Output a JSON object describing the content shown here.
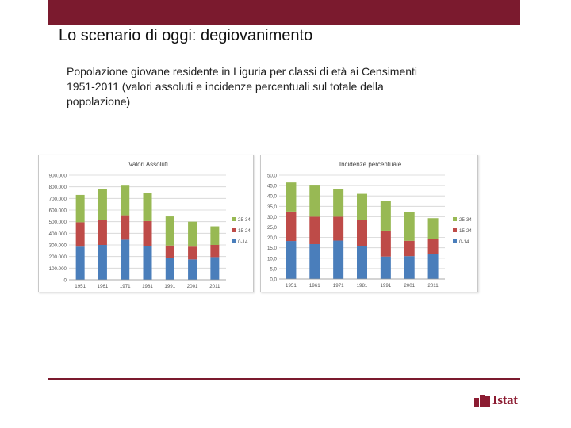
{
  "slide": {
    "title": "Lo scenario di oggi: degiovanimento",
    "subtitle": "Popolazione giovane residente in Liguria per classi di età ai Censimenti 1951-2011 (valori assoluti e incidenze percentuali sul totale della popolazione)",
    "logo_text": "Istat"
  },
  "colors": {
    "accent": "#7b1a2e",
    "series_0_14": "#4a7ebb",
    "series_15_24": "#be4b48",
    "series_25_34": "#98b954"
  },
  "chart_data": [
    {
      "type": "bar",
      "stacked": true,
      "title": "Valori Assoluti",
      "categories": [
        "1951",
        "1961",
        "1971",
        "1981",
        "1991",
        "2001",
        "2011"
      ],
      "series": [
        {
          "name": "0-14",
          "values": [
            285000,
            300000,
            345000,
            290000,
            185000,
            175000,
            195000
          ]
        },
        {
          "name": "15-24",
          "values": [
            210000,
            215000,
            210000,
            215000,
            110000,
            110000,
            105000
          ]
        },
        {
          "name": "25-34",
          "values": [
            235000,
            265000,
            255000,
            245000,
            250000,
            215000,
            160000
          ]
        }
      ],
      "ylim": [
        0,
        900000
      ],
      "yticks": [
        "0",
        "100.000",
        "200.000",
        "300.000",
        "400.000",
        "500.000",
        "600.000",
        "700.000",
        "800.000",
        "900.000"
      ],
      "legend": [
        "25-34",
        "15-24",
        "0-14"
      ],
      "legend_position": "right",
      "grid": true
    },
    {
      "type": "bar",
      "stacked": true,
      "title": "Incidenze percentuale",
      "categories": [
        "1951",
        "1961",
        "1971",
        "1981",
        "1991",
        "2001",
        "2011"
      ],
      "series": [
        {
          "name": "0-14",
          "values": [
            18.3,
            16.8,
            18.5,
            15.8,
            10.8,
            11.0,
            11.9
          ]
        },
        {
          "name": "15-24",
          "values": [
            14.2,
            13.2,
            11.5,
            12.5,
            12.5,
            7.4,
            7.5
          ]
        },
        {
          "name": "25-34",
          "values": [
            14.0,
            15.0,
            13.5,
            12.7,
            14.2,
            14.0,
            9.9
          ]
        }
      ],
      "ylim": [
        0,
        50
      ],
      "yticks": [
        "0,0",
        "5,0",
        "10,0",
        "15,0",
        "20,0",
        "25,0",
        "30,0",
        "35,0",
        "40,0",
        "45,0",
        "50,0"
      ],
      "legend": [
        "25-34",
        "15-24",
        "0-14"
      ],
      "legend_position": "right",
      "grid": true
    }
  ]
}
